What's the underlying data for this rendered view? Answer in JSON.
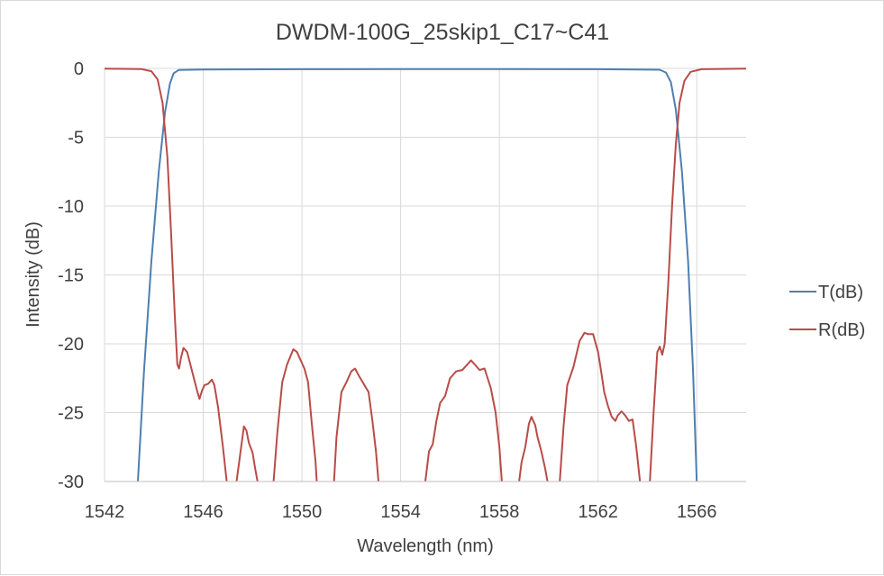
{
  "chart_data": {
    "type": "line",
    "title": "DWDM-100G_25skip1_C17~C41",
    "xlabel": "Wavelength (nm)",
    "ylabel": "Intensity (dB)",
    "xlim": [
      1542,
      1568
    ],
    "ylim": [
      -30,
      0
    ],
    "x_ticks": [
      1542,
      1546,
      1550,
      1554,
      1558,
      1562,
      1566
    ],
    "x_tick_labels": [
      "1542",
      "1546",
      "1550",
      "1554",
      "1558",
      "1562",
      "1566"
    ],
    "y_ticks": [
      0,
      -5,
      -10,
      -15,
      -20,
      -25,
      -30
    ],
    "y_tick_labels": [
      "0",
      "-5",
      "-10",
      "-15",
      "-20",
      "-25",
      "-30"
    ],
    "grid": true,
    "legend_position": "right",
    "series": [
      {
        "name": "T(dB)",
        "color": "#4e7fb1",
        "points": [
          [
            1543.35,
            -30
          ],
          [
            1543.6,
            -22
          ],
          [
            1543.9,
            -14
          ],
          [
            1544.2,
            -7.5
          ],
          [
            1544.45,
            -3.2
          ],
          [
            1544.65,
            -1.1
          ],
          [
            1544.8,
            -0.35
          ],
          [
            1545.0,
            -0.12
          ],
          [
            1546.0,
            -0.08
          ],
          [
            1550.0,
            -0.06
          ],
          [
            1554.0,
            -0.05
          ],
          [
            1558.0,
            -0.05
          ],
          [
            1562.0,
            -0.06
          ],
          [
            1564.5,
            -0.1
          ],
          [
            1564.75,
            -0.3
          ],
          [
            1564.95,
            -1.0
          ],
          [
            1565.15,
            -3.0
          ],
          [
            1565.4,
            -7.5
          ],
          [
            1565.65,
            -14
          ],
          [
            1565.85,
            -22
          ],
          [
            1566.0,
            -30
          ]
        ]
      },
      {
        "name": "R(dB)",
        "color": "#b84c48",
        "segments": [
          [
            [
              1542.0,
              -0.02
            ],
            [
              1543.5,
              -0.05
            ],
            [
              1543.9,
              -0.2
            ],
            [
              1544.15,
              -0.8
            ],
            [
              1544.35,
              -2.5
            ],
            [
              1544.55,
              -6.5
            ],
            [
              1544.7,
              -12.0
            ],
            [
              1544.85,
              -18.0
            ],
            [
              1544.95,
              -21.5
            ],
            [
              1545.02,
              -21.8
            ],
            [
              1545.1,
              -21.0
            ],
            [
              1545.2,
              -20.3
            ],
            [
              1545.35,
              -20.6
            ],
            [
              1545.55,
              -22.0
            ],
            [
              1545.75,
              -23.4
            ],
            [
              1545.85,
              -24.0
            ],
            [
              1545.95,
              -23.4
            ],
            [
              1546.05,
              -23.0
            ],
            [
              1546.2,
              -22.9
            ],
            [
              1546.35,
              -22.6
            ],
            [
              1546.45,
              -23.0
            ],
            [
              1546.6,
              -24.6
            ],
            [
              1546.8,
              -27.5
            ],
            [
              1546.95,
              -30.0
            ]
          ],
          [
            [
              1547.35,
              -30.0
            ],
            [
              1547.5,
              -28.0
            ],
            [
              1547.65,
              -26.0
            ],
            [
              1547.75,
              -26.3
            ],
            [
              1547.85,
              -27.2
            ],
            [
              1548.0,
              -27.9
            ],
            [
              1548.1,
              -29.0
            ],
            [
              1548.2,
              -30.0
            ]
          ],
          [
            [
              1548.85,
              -30.0
            ],
            [
              1549.0,
              -26.5
            ],
            [
              1549.2,
              -22.8
            ],
            [
              1549.4,
              -21.5
            ],
            [
              1549.65,
              -20.4
            ],
            [
              1549.8,
              -20.6
            ],
            [
              1549.95,
              -21.2
            ],
            [
              1550.1,
              -21.8
            ],
            [
              1550.25,
              -22.8
            ],
            [
              1550.4,
              -25.8
            ],
            [
              1550.55,
              -28.5
            ],
            [
              1550.6,
              -30.0
            ]
          ],
          [
            [
              1551.3,
              -30.0
            ],
            [
              1551.4,
              -26.8
            ],
            [
              1551.6,
              -23.5
            ],
            [
              1551.8,
              -22.8
            ],
            [
              1552.0,
              -22.0
            ],
            [
              1552.15,
              -21.8
            ],
            [
              1552.3,
              -22.3
            ],
            [
              1552.5,
              -22.9
            ],
            [
              1552.7,
              -23.5
            ],
            [
              1552.85,
              -25.5
            ],
            [
              1553.0,
              -27.8
            ],
            [
              1553.1,
              -30.0
            ]
          ],
          [
            [
              1555.0,
              -30.0
            ],
            [
              1555.15,
              -27.8
            ],
            [
              1555.3,
              -27.3
            ],
            [
              1555.45,
              -25.6
            ],
            [
              1555.6,
              -24.3
            ],
            [
              1555.8,
              -23.8
            ],
            [
              1556.0,
              -22.5
            ],
            [
              1556.25,
              -22.0
            ],
            [
              1556.5,
              -21.9
            ],
            [
              1556.7,
              -21.5
            ],
            [
              1556.85,
              -21.2
            ],
            [
              1557.0,
              -21.5
            ],
            [
              1557.2,
              -21.9
            ],
            [
              1557.4,
              -21.8
            ],
            [
              1557.65,
              -23.2
            ],
            [
              1557.85,
              -25.0
            ],
            [
              1558.0,
              -27.5
            ],
            [
              1558.1,
              -30.0
            ]
          ],
          [
            [
              1558.8,
              -30.0
            ],
            [
              1558.9,
              -28.6
            ],
            [
              1559.05,
              -27.5
            ],
            [
              1559.2,
              -25.8
            ],
            [
              1559.3,
              -25.3
            ],
            [
              1559.45,
              -25.9
            ],
            [
              1559.55,
              -26.8
            ],
            [
              1559.7,
              -27.8
            ],
            [
              1559.85,
              -29.0
            ],
            [
              1559.95,
              -30.0
            ]
          ],
          [
            [
              1560.45,
              -30.0
            ],
            [
              1560.6,
              -26.0
            ],
            [
              1560.75,
              -23.0
            ],
            [
              1561.0,
              -21.7
            ],
            [
              1561.25,
              -19.8
            ],
            [
              1561.45,
              -19.2
            ],
            [
              1561.6,
              -19.3
            ],
            [
              1561.8,
              -19.3
            ],
            [
              1562.0,
              -20.6
            ],
            [
              1562.15,
              -22.3
            ],
            [
              1562.25,
              -23.5
            ],
            [
              1562.4,
              -24.5
            ],
            [
              1562.55,
              -25.3
            ],
            [
              1562.7,
              -25.6
            ],
            [
              1562.8,
              -25.2
            ],
            [
              1562.95,
              -24.9
            ],
            [
              1563.1,
              -25.2
            ],
            [
              1563.25,
              -25.6
            ],
            [
              1563.4,
              -25.5
            ],
            [
              1563.55,
              -27.5
            ],
            [
              1563.7,
              -30.0
            ]
          ],
          [
            [
              1564.1,
              -30.0
            ],
            [
              1564.25,
              -25.0
            ],
            [
              1564.4,
              -20.6
            ],
            [
              1564.5,
              -20.2
            ],
            [
              1564.6,
              -20.8
            ],
            [
              1564.7,
              -20.0
            ],
            [
              1564.85,
              -15.5
            ],
            [
              1565.0,
              -10.0
            ],
            [
              1565.15,
              -5.5
            ],
            [
              1565.3,
              -2.5
            ],
            [
              1565.5,
              -0.9
            ],
            [
              1565.75,
              -0.25
            ],
            [
              1566.2,
              -0.06
            ],
            [
              1568.0,
              -0.02
            ]
          ]
        ]
      }
    ]
  }
}
